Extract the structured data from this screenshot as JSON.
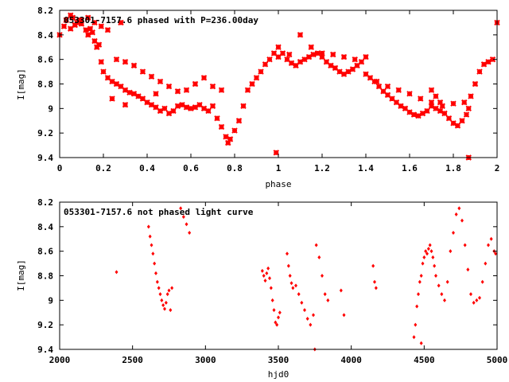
{
  "chart_data": [
    {
      "type": "scatter",
      "title": "053301-7157.6 phased with P=236.00day",
      "xlabel": "phase",
      "ylabel": "I[mag]",
      "xlim": [
        0,
        2
      ],
      "ylim": [
        9.4,
        8.2
      ],
      "y_inverted": true,
      "xticks": [
        "0",
        "0.2",
        "0.4",
        "0.6",
        "0.8",
        "1",
        "1.2",
        "1.4",
        "1.6",
        "1.8",
        "2"
      ],
      "yticks": [
        "8.2",
        "8.4",
        "8.6",
        "8.8",
        "9",
        "9.2",
        "9.4"
      ],
      "marker": "cross",
      "color": "#ff0000",
      "series": [
        {
          "x": [
            0.0,
            0.02,
            0.03,
            0.05,
            0.06,
            0.08,
            0.09,
            0.1,
            0.12,
            0.13,
            0.14,
            0.15,
            0.16,
            0.17,
            0.18,
            0.19,
            0.2,
            0.22,
            0.24,
            0.26,
            0.28,
            0.3,
            0.32,
            0.34,
            0.36,
            0.38,
            0.4,
            0.42,
            0.44,
            0.46,
            0.48,
            0.5,
            0.52,
            0.54,
            0.56,
            0.58,
            0.6,
            0.62,
            0.64,
            0.66,
            0.68,
            0.7,
            0.72,
            0.74,
            0.76,
            0.77,
            0.78,
            0.8,
            0.82,
            0.84,
            0.86,
            0.88,
            0.9,
            0.92,
            0.94,
            0.96,
            0.98,
            1.0,
            1.02,
            1.04,
            1.06,
            1.08,
            1.1,
            1.12,
            1.14,
            1.16,
            1.18,
            1.2,
            1.22,
            1.24,
            1.26,
            1.28,
            1.3,
            1.32,
            1.34,
            1.36,
            1.38,
            1.4,
            1.42,
            1.44,
            1.46,
            1.48,
            1.5,
            1.52,
            1.54,
            1.56,
            1.58,
            1.6,
            1.62,
            1.64,
            1.66,
            1.68,
            1.7,
            1.72,
            1.74,
            1.76,
            1.78,
            1.8,
            1.82,
            1.84,
            1.86,
            1.87,
            1.88,
            1.9,
            1.92,
            1.94,
            1.96,
            1.98,
            2.0,
            0.05,
            0.07,
            0.1,
            0.13,
            0.16,
            0.19,
            0.22,
            0.26,
            0.3,
            0.34,
            0.38,
            0.42,
            0.46,
            0.5,
            0.54,
            0.58,
            0.62,
            0.66,
            0.7,
            0.74,
            1.0,
            1.05,
            1.1,
            1.15,
            1.2,
            1.25,
            1.3,
            1.35,
            1.4,
            1.45,
            1.5,
            1.55,
            1.6,
            1.65,
            1.7,
            1.75,
            1.8,
            1.85,
            0.28,
            0.44,
            0.99,
            1.87,
            0.3,
            0.24,
            1.7,
            1.72,
            1.74
          ],
          "y": [
            8.4,
            8.33,
            8.28,
            8.24,
            8.26,
            8.3,
            8.28,
            8.31,
            8.36,
            8.4,
            8.35,
            8.38,
            8.45,
            8.5,
            8.48,
            8.62,
            8.7,
            8.75,
            8.78,
            8.8,
            8.82,
            8.85,
            8.87,
            8.88,
            8.9,
            8.92,
            8.95,
            8.97,
            8.99,
            9.02,
            9.0,
            9.04,
            9.02,
            8.98,
            8.97,
            8.99,
            9.0,
            8.99,
            8.97,
            9.0,
            9.02,
            8.98,
            9.08,
            9.15,
            9.23,
            9.28,
            9.25,
            9.18,
            9.1,
            8.98,
            8.85,
            8.8,
            8.75,
            8.7,
            8.64,
            8.6,
            8.55,
            8.5,
            8.55,
            8.6,
            8.63,
            8.65,
            8.62,
            8.6,
            8.58,
            8.56,
            8.55,
            8.58,
            8.62,
            8.65,
            8.67,
            8.7,
            8.72,
            8.7,
            8.68,
            8.65,
            8.62,
            8.72,
            8.75,
            8.78,
            8.82,
            8.86,
            8.89,
            8.92,
            8.95,
            8.98,
            9.0,
            9.03,
            9.05,
            9.06,
            9.04,
            9.02,
            8.98,
            9.0,
            9.02,
            9.04,
            9.08,
            9.12,
            9.14,
            9.1,
            9.05,
            9.0,
            8.9,
            8.8,
            8.7,
            8.64,
            8.62,
            8.6,
            8.3,
            8.35,
            8.32,
            8.28,
            8.26,
            8.3,
            8.33,
            8.36,
            8.6,
            8.62,
            8.65,
            8.7,
            8.74,
            8.78,
            8.82,
            8.86,
            8.85,
            8.8,
            8.75,
            8.82,
            8.85,
            8.58,
            8.56,
            8.4,
            8.5,
            8.55,
            8.56,
            8.58,
            8.6,
            8.58,
            8.78,
            8.82,
            8.85,
            8.88,
            8.92,
            8.95,
            8.98,
            8.96,
            8.95,
            8.3,
            8.88,
            9.36,
            9.4,
            8.97,
            8.92,
            8.85,
            8.9,
            8.95
          ]
        }
      ]
    },
    {
      "type": "scatter",
      "title": "053301-7157.6 not phased light curve",
      "xlabel": "hjd0",
      "ylabel": "I[mag]",
      "xlim": [
        2000,
        5000
      ],
      "ylim": [
        9.4,
        8.2
      ],
      "y_inverted": true,
      "xticks": [
        "2000",
        "2500",
        "3000",
        "3500",
        "4000",
        "4500",
        "5000"
      ],
      "yticks": [
        "8.2",
        "8.4",
        "8.6",
        "8.8",
        "9",
        "9.2",
        "9.4"
      ],
      "marker": "diamond",
      "color": "#ff0000",
      "series": [
        {
          "x": [
            2390,
            2610,
            2620,
            2630,
            2640,
            2650,
            2660,
            2670,
            2680,
            2690,
            2700,
            2710,
            2720,
            2730,
            2740,
            2750,
            2760,
            2770,
            2830,
            2850,
            2870,
            2890,
            3390,
            3400,
            3410,
            3420,
            3430,
            3440,
            3450,
            3460,
            3470,
            3480,
            3490,
            3500,
            3510,
            3560,
            3570,
            3580,
            3590,
            3600,
            3620,
            3640,
            3660,
            3680,
            3700,
            3720,
            3740,
            3760,
            3780,
            3800,
            3820,
            3840,
            3930,
            3950,
            4150,
            4160,
            4170,
            4430,
            4440,
            4450,
            4460,
            4470,
            4480,
            4490,
            4500,
            4510,
            4520,
            4530,
            4540,
            4550,
            4560,
            4570,
            4580,
            4600,
            4620,
            4640,
            4660,
            4680,
            4700,
            4720,
            4740,
            4760,
            4780,
            4800,
            4820,
            4840,
            4860,
            4880,
            4900,
            4920,
            4940,
            4960,
            4980,
            4990,
            3750,
            4480
          ],
          "y": [
            8.77,
            8.4,
            8.48,
            8.55,
            8.62,
            8.7,
            8.78,
            8.85,
            8.9,
            8.95,
            9.0,
            9.04,
            9.07,
            9.02,
            8.95,
            8.92,
            9.08,
            8.9,
            8.25,
            8.32,
            8.38,
            8.45,
            8.76,
            8.8,
            8.84,
            8.78,
            8.74,
            8.82,
            8.9,
            9.0,
            9.08,
            9.18,
            9.2,
            9.14,
            9.1,
            8.62,
            8.72,
            8.8,
            8.86,
            8.9,
            8.88,
            8.95,
            9.02,
            9.08,
            9.15,
            9.2,
            9.12,
            8.55,
            8.65,
            8.8,
            8.95,
            9.0,
            8.92,
            9.12,
            8.72,
            8.85,
            8.9,
            9.3,
            9.2,
            9.05,
            8.95,
            8.85,
            8.8,
            8.7,
            8.65,
            8.6,
            8.62,
            8.58,
            8.55,
            8.6,
            8.65,
            8.72,
            8.8,
            8.88,
            8.95,
            9.0,
            8.85,
            8.6,
            8.45,
            8.3,
            8.25,
            8.35,
            8.55,
            8.75,
            8.95,
            9.02,
            9.0,
            8.98,
            8.85,
            8.7,
            8.55,
            8.5,
            8.6,
            8.62,
            9.4,
            9.35
          ]
        }
      ]
    }
  ]
}
